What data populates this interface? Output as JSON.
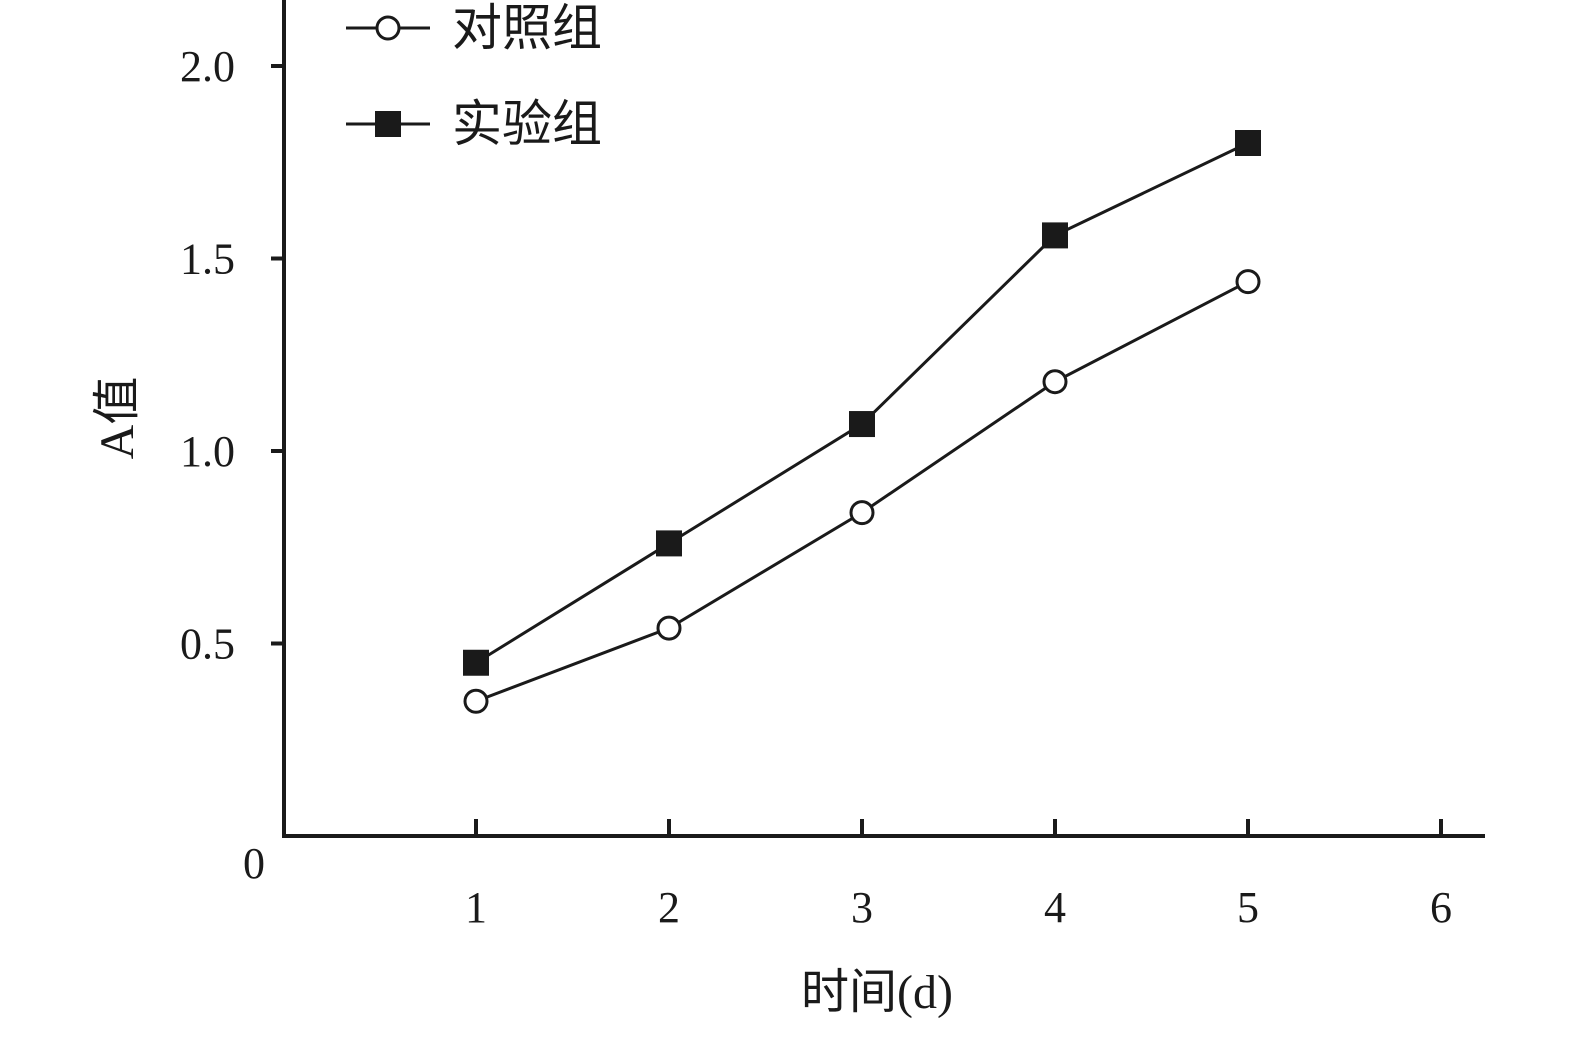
{
  "chart_data": {
    "type": "line",
    "title": "",
    "xlabel": "时间(d)",
    "ylabel": "A值",
    "origin_label": "0",
    "x": [
      1,
      2,
      3,
      4,
      5
    ],
    "xticks": [
      "1",
      "2",
      "3",
      "4",
      "5",
      "6"
    ],
    "xlim": [
      0,
      6.2
    ],
    "yticks": [
      "0.5",
      "1.0",
      "1.5",
      "2.0"
    ],
    "ylim": [
      0,
      2.2
    ],
    "grid": false,
    "legend_position": "top-left",
    "series": [
      {
        "name": "对照组",
        "marker": "open-circle",
        "values": [
          0.35,
          0.54,
          0.84,
          1.18,
          1.44
        ]
      },
      {
        "name": "实验组",
        "marker": "filled-square",
        "values": [
          0.45,
          0.76,
          1.07,
          1.56,
          1.8
        ]
      }
    ],
    "colors": {
      "line": "#1a1a1a",
      "open_marker_fill": "#ffffff",
      "filled_marker_fill": "#1a1a1a"
    }
  }
}
